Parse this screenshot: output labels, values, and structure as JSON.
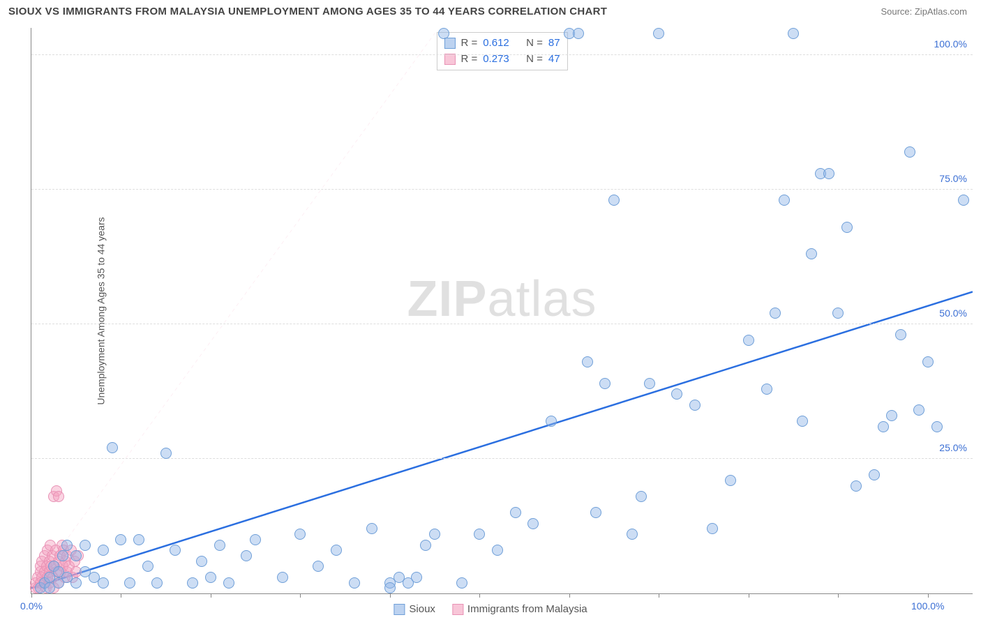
{
  "header": {
    "title": "SIOUX VS IMMIGRANTS FROM MALAYSIA UNEMPLOYMENT AMONG AGES 35 TO 44 YEARS CORRELATION CHART",
    "source_prefix": "Source: ",
    "source": "ZipAtlas.com"
  },
  "chart": {
    "ylabel": "Unemployment Among Ages 35 to 44 years",
    "xlim": [
      0,
      105
    ],
    "ylim": [
      0,
      105
    ],
    "grid_color": "#dddddd",
    "background_color": "#ffffff",
    "ytick_positions": [
      25,
      50,
      75,
      100
    ],
    "ytick_labels": [
      "25.0%",
      "50.0%",
      "75.0%",
      "100.0%"
    ],
    "xtick_positions": [
      0,
      10,
      20,
      30,
      40,
      50,
      60,
      70,
      80,
      90,
      100
    ],
    "xtick_labels_shown": {
      "0": "0.0%",
      "100": "100.0%"
    },
    "watermark_a": "ZIP",
    "watermark_b": "atlas",
    "series": {
      "sioux": {
        "label": "Sioux",
        "color_fill": "rgba(143,180,230,0.45)",
        "color_stroke": "#6f9fd8",
        "marker_size": 16,
        "R": "0.612",
        "N": "87",
        "trend": {
          "x1": 0,
          "y1": 1,
          "x2": 105,
          "y2": 56,
          "color": "#2b6fe0",
          "width": 2.5,
          "dash": "none"
        },
        "points": [
          [
            1,
            1
          ],
          [
            1.5,
            2
          ],
          [
            2,
            1
          ],
          [
            2,
            3
          ],
          [
            2.5,
            5
          ],
          [
            3,
            4
          ],
          [
            3,
            2
          ],
          [
            3.5,
            7
          ],
          [
            4,
            3
          ],
          [
            4,
            9
          ],
          [
            5,
            7
          ],
          [
            5,
            2
          ],
          [
            6,
            4
          ],
          [
            6,
            9
          ],
          [
            7,
            3
          ],
          [
            8,
            8
          ],
          [
            8,
            2
          ],
          [
            9,
            27
          ],
          [
            10,
            10
          ],
          [
            11,
            2
          ],
          [
            12,
            10
          ],
          [
            13,
            5
          ],
          [
            14,
            2
          ],
          [
            15,
            26
          ],
          [
            16,
            8
          ],
          [
            18,
            2
          ],
          [
            19,
            6
          ],
          [
            20,
            3
          ],
          [
            21,
            9
          ],
          [
            22,
            2
          ],
          [
            24,
            7
          ],
          [
            25,
            10
          ],
          [
            28,
            3
          ],
          [
            30,
            11
          ],
          [
            32,
            5
          ],
          [
            34,
            8
          ],
          [
            36,
            2
          ],
          [
            38,
            12
          ],
          [
            40,
            2
          ],
          [
            40,
            1
          ],
          [
            41,
            3
          ],
          [
            42,
            2
          ],
          [
            43,
            3
          ],
          [
            44,
            9
          ],
          [
            45,
            11
          ],
          [
            46,
            104
          ],
          [
            48,
            2
          ],
          [
            50,
            11
          ],
          [
            52,
            8
          ],
          [
            54,
            15
          ],
          [
            56,
            13
          ],
          [
            58,
            32
          ],
          [
            60,
            104
          ],
          [
            61,
            104
          ],
          [
            62,
            43
          ],
          [
            63,
            15
          ],
          [
            64,
            39
          ],
          [
            65,
            73
          ],
          [
            67,
            11
          ],
          [
            68,
            18
          ],
          [
            69,
            39
          ],
          [
            70,
            104
          ],
          [
            72,
            37
          ],
          [
            74,
            35
          ],
          [
            76,
            12
          ],
          [
            78,
            21
          ],
          [
            80,
            47
          ],
          [
            82,
            38
          ],
          [
            83,
            52
          ],
          [
            84,
            73
          ],
          [
            85,
            104
          ],
          [
            86,
            32
          ],
          [
            87,
            63
          ],
          [
            88,
            78
          ],
          [
            89,
            78
          ],
          [
            90,
            52
          ],
          [
            91,
            68
          ],
          [
            92,
            20
          ],
          [
            94,
            22
          ],
          [
            95,
            31
          ],
          [
            96,
            33
          ],
          [
            97,
            48
          ],
          [
            98,
            82
          ],
          [
            99,
            34
          ],
          [
            100,
            43
          ],
          [
            101,
            31
          ],
          [
            104,
            73
          ]
        ]
      },
      "malaysia": {
        "label": "Immigrants from Malaysia",
        "color_fill": "rgba(244,160,190,0.45)",
        "color_stroke": "#e892b5",
        "marker_size": 16,
        "R": "0.273",
        "N": "47",
        "trend": {
          "x1": 0,
          "y1": 1,
          "x2": 45,
          "y2": 104,
          "color": "#f4a0be",
          "width": 1.2,
          "dash": "5,5"
        },
        "points": [
          [
            0.5,
            1
          ],
          [
            0.5,
            2
          ],
          [
            0.7,
            3
          ],
          [
            0.8,
            1
          ],
          [
            1,
            2
          ],
          [
            1,
            4
          ],
          [
            1,
            5
          ],
          [
            1.2,
            3
          ],
          [
            1.2,
            6
          ],
          [
            1.4,
            2
          ],
          [
            1.5,
            4
          ],
          [
            1.5,
            7
          ],
          [
            1.6,
            1
          ],
          [
            1.7,
            5
          ],
          [
            1.8,
            3
          ],
          [
            1.8,
            8
          ],
          [
            2,
            4
          ],
          [
            2,
            6
          ],
          [
            2,
            2
          ],
          [
            2.1,
            9
          ],
          [
            2.2,
            5
          ],
          [
            2.3,
            7
          ],
          [
            2.4,
            3
          ],
          [
            2.5,
            1
          ],
          [
            2.5,
            18
          ],
          [
            2.6,
            5
          ],
          [
            2.7,
            8
          ],
          [
            2.8,
            4
          ],
          [
            2.8,
            19
          ],
          [
            3,
            6
          ],
          [
            3,
            2
          ],
          [
            3,
            18
          ],
          [
            3.2,
            7
          ],
          [
            3.3,
            4
          ],
          [
            3.4,
            9
          ],
          [
            3.5,
            5
          ],
          [
            3.6,
            8
          ],
          [
            3.7,
            3
          ],
          [
            3.8,
            6
          ],
          [
            4,
            4
          ],
          [
            4,
            7
          ],
          [
            4.2,
            5
          ],
          [
            4.4,
            8
          ],
          [
            4.6,
            3
          ],
          [
            4.8,
            6
          ],
          [
            5,
            4
          ],
          [
            5.2,
            7
          ]
        ]
      }
    },
    "top_legend": {
      "r_label": "R =",
      "n_label": "N ="
    }
  }
}
